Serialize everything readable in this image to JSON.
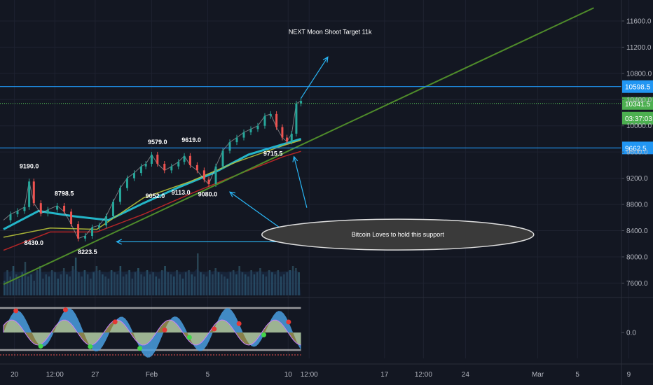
{
  "chart_data": {
    "type": "line",
    "instrument": "BTCUSD",
    "price_axis": {
      "ticks": [
        11600,
        11200,
        10800,
        10400,
        10000,
        9600,
        9200,
        8800,
        8400,
        8000,
        7600
      ],
      "ylim": [
        7380,
        11920
      ]
    },
    "time_axis": {
      "labels": [
        {
          "text": "20",
          "d": 0.47
        },
        {
          "text": "12:00",
          "d": 2.2
        },
        {
          "text": "27",
          "d": 3.93
        },
        {
          "text": "Feb",
          "d": 6.35
        },
        {
          "text": "5",
          "d": 8.75
        },
        {
          "text": "10",
          "d": 12.2
        },
        {
          "text": "12:00",
          "d": 13.1
        },
        {
          "text": "17",
          "d": 16.33
        },
        {
          "text": "12:00",
          "d": 18.0
        },
        {
          "text": "24",
          "d": 19.8
        },
        {
          "text": "Mar",
          "d": 22.9
        },
        {
          "text": "5",
          "d": 24.6
        },
        {
          "text": "9",
          "d": 26.8
        }
      ]
    },
    "price_series": [
      {
        "d": 0.0,
        "v": 8560
      },
      {
        "d": 0.3,
        "v": 8650
      },
      {
        "d": 0.6,
        "v": 8700
      },
      {
        "d": 0.9,
        "v": 8760
      },
      {
        "d": 1.1,
        "v": 9150
      },
      {
        "d": 1.3,
        "v": 8820
      },
      {
        "d": 1.6,
        "v": 8660
      },
      {
        "d": 1.9,
        "v": 8720
      },
      {
        "d": 2.3,
        "v": 8780
      },
      {
        "d": 2.6,
        "v": 8690
      },
      {
        "d": 2.9,
        "v": 8500
      },
      {
        "d": 3.2,
        "v": 8280
      },
      {
        "d": 3.5,
        "v": 8320
      },
      {
        "d": 3.8,
        "v": 8450
      },
      {
        "d": 4.1,
        "v": 8480
      },
      {
        "d": 4.4,
        "v": 8620
      },
      {
        "d": 4.7,
        "v": 8840
      },
      {
        "d": 5.0,
        "v": 9050
      },
      {
        "d": 5.3,
        "v": 9200
      },
      {
        "d": 5.6,
        "v": 9280
      },
      {
        "d": 5.9,
        "v": 9380
      },
      {
        "d": 6.1,
        "v": 9420
      },
      {
        "d": 6.35,
        "v": 9560
      },
      {
        "d": 6.6,
        "v": 9420
      },
      {
        "d": 6.9,
        "v": 9320
      },
      {
        "d": 7.2,
        "v": 9380
      },
      {
        "d": 7.5,
        "v": 9450
      },
      {
        "d": 7.75,
        "v": 9540
      },
      {
        "d": 8.0,
        "v": 9400
      },
      {
        "d": 8.3,
        "v": 9320
      },
      {
        "d": 8.6,
        "v": 9180
      },
      {
        "d": 8.8,
        "v": 9110
      },
      {
        "d": 9.1,
        "v": 9380
      },
      {
        "d": 9.4,
        "v": 9620
      },
      {
        "d": 9.7,
        "v": 9750
      },
      {
        "d": 10.0,
        "v": 9820
      },
      {
        "d": 10.3,
        "v": 9900
      },
      {
        "d": 10.6,
        "v": 9950
      },
      {
        "d": 10.9,
        "v": 10000
      },
      {
        "d": 11.2,
        "v": 10150
      },
      {
        "d": 11.45,
        "v": 10180
      },
      {
        "d": 11.7,
        "v": 9980
      },
      {
        "d": 11.95,
        "v": 9820
      },
      {
        "d": 12.15,
        "v": 9760
      },
      {
        "d": 12.35,
        "v": 9880
      },
      {
        "d": 12.55,
        "v": 10340
      },
      {
        "d": 12.75,
        "v": 10380
      }
    ],
    "moving_averages": [
      {
        "color": "#26c6da",
        "points": [
          {
            "d": 0.0,
            "v": 8420
          },
          {
            "d": 1.5,
            "v": 8700
          },
          {
            "d": 3.0,
            "v": 8620
          },
          {
            "d": 4.5,
            "v": 8560
          },
          {
            "d": 6.0,
            "v": 8820
          },
          {
            "d": 7.5,
            "v": 9060
          },
          {
            "d": 9.0,
            "v": 9280
          },
          {
            "d": 10.5,
            "v": 9560
          },
          {
            "d": 12.0,
            "v": 9720
          },
          {
            "d": 12.75,
            "v": 9800
          }
        ]
      },
      {
        "color": "#b7c23a",
        "points": [
          {
            "d": 0.0,
            "v": 8300
          },
          {
            "d": 2.0,
            "v": 8440
          },
          {
            "d": 4.0,
            "v": 8420
          },
          {
            "d": 6.0,
            "v": 8900
          },
          {
            "d": 8.0,
            "v": 9150
          },
          {
            "d": 10.0,
            "v": 9450
          },
          {
            "d": 12.0,
            "v": 9700
          },
          {
            "d": 12.75,
            "v": 9780
          }
        ]
      },
      {
        "color": "#c62828",
        "points": [
          {
            "d": 0.0,
            "v": 8100
          },
          {
            "d": 2.0,
            "v": 8380
          },
          {
            "d": 4.0,
            "v": 8380
          },
          {
            "d": 6.0,
            "v": 8650
          },
          {
            "d": 8.0,
            "v": 8960
          },
          {
            "d": 10.0,
            "v": 9250
          },
          {
            "d": 12.0,
            "v": 9530
          },
          {
            "d": 12.75,
            "v": 9610
          }
        ]
      }
    ],
    "levels": [
      {
        "value": 10598.5,
        "label": "10598.5",
        "color": "#2196f3",
        "style": "solid"
      },
      {
        "value": 10341.5,
        "label": "10341.5",
        "color": "#4caf50",
        "style": "dotted"
      },
      {
        "value": 9662.5,
        "label": "9662.5",
        "color": "#2196f3",
        "style": "solid"
      }
    ],
    "countdown_label": "03:37:03",
    "trendline": {
      "color": "#4f8c2a",
      "from": {
        "d": 0.0,
        "v": 7580
      },
      "to": {
        "d": 25.3,
        "v": 11800
      }
    },
    "price_labels": [
      {
        "text": "9190.0",
        "d": 1.1,
        "v": 9350
      },
      {
        "text": "8798.5",
        "d": 2.6,
        "v": 8935
      },
      {
        "text": "8430.0",
        "d": 1.3,
        "v": 8180
      },
      {
        "text": "8223.5",
        "d": 3.6,
        "v": 8040
      },
      {
        "text": "9579.0",
        "d": 6.6,
        "v": 9720
      },
      {
        "text": "9619.0",
        "d": 8.05,
        "v": 9750
      },
      {
        "text": "9052.0",
        "d": 6.5,
        "v": 8895
      },
      {
        "text": "9113.0",
        "d": 7.6,
        "v": 8950
      },
      {
        "text": "9080.0",
        "d": 8.75,
        "v": 8925
      },
      {
        "text": "9715.5",
        "d": 11.55,
        "v": 9545
      }
    ],
    "annotations": [
      {
        "text": "NEXT Moon Shoot Target 11k",
        "d": 14.0,
        "v": 11400
      },
      {
        "text": "Bitcoin Loves to hold this support",
        "d": 16.9,
        "v": 8340
      }
    ],
    "volume_bars": [
      0.35,
      0.6,
      0.45,
      0.7,
      0.5,
      0.4,
      0.55,
      0.8,
      0.45,
      0.5,
      0.35,
      0.6,
      0.7,
      0.4,
      0.5,
      0.45,
      0.6,
      0.55,
      0.4,
      0.5,
      0.65,
      0.5,
      0.45,
      0.7,
      0.9,
      0.55,
      0.45,
      0.6,
      0.5,
      0.4,
      0.55,
      0.7,
      0.6,
      0.5,
      0.45,
      0.4,
      0.6,
      0.55,
      0.5,
      0.7,
      0.45,
      0.5,
      0.6,
      0.4,
      0.55,
      0.65,
      0.5,
      0.45,
      0.6,
      0.5,
      0.55,
      0.45,
      0.4,
      0.6,
      0.7,
      0.55,
      0.5,
      0.45,
      0.6,
      0.5,
      0.4,
      0.55,
      0.6,
      0.5,
      0.45,
      1.0,
      0.55,
      0.5,
      0.45,
      0.6,
      0.5,
      0.65,
      0.55,
      0.5,
      0.45,
      0.4,
      0.55,
      0.6,
      0.5,
      0.7,
      0.55,
      0.5,
      0.45,
      0.6,
      0.5,
      0.55,
      0.65,
      0.5,
      0.45,
      0.6,
      0.55,
      0.5,
      0.6,
      0.45,
      0.5,
      0.55,
      0.6,
      0.7,
      0.65,
      0.55
    ],
    "oscillator": {
      "zero_label": "0.0"
    }
  }
}
